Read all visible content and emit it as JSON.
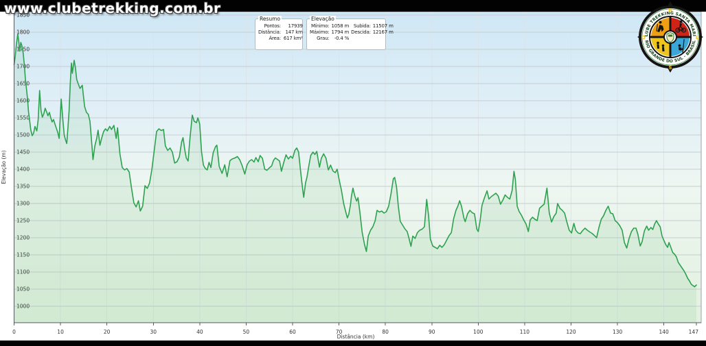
{
  "watermark": "www.clubetrekking.com.br",
  "boxes": {
    "resumo": {
      "title": "Resumo",
      "rows": [
        {
          "label": "Pontos:",
          "value": "17939"
        },
        {
          "label": "Distância:",
          "value": "147 km"
        },
        {
          "label": "Área:",
          "value": "617 km²"
        }
      ]
    },
    "elevacao": {
      "title": "Elevação",
      "rows": [
        {
          "label": "Mínimo:",
          "value": "1058 m",
          "label2": "Subida:",
          "value2": "11507 m"
        },
        {
          "label": "Máximo:",
          "value": "1794 m",
          "label2": "Descida:",
          "value2": "12167 m"
        },
        {
          "label": "Grau:",
          "value": "-0.4 %",
          "label2": "",
          "value2": ""
        }
      ]
    }
  },
  "logo": {
    "arc_text_top": "CLUBE TREKKING SANTA MARIA",
    "arc_text_bottom": "RIO GRANDE DO SUL - BRASIL",
    "compass": {
      "north": "N",
      "south": "S",
      "east": "L",
      "west": "O"
    },
    "colors": {
      "quad_tl": "#efa012",
      "quad_tr": "#cf2318",
      "quad_bl": "#edc51c",
      "quad_br": "#3ba7d9",
      "ring_text": "#16451a",
      "letters": "#f2c21d",
      "outline": "#141414"
    }
  },
  "chart_data": {
    "type": "line",
    "title": "",
    "xlabel": "Distância (km)",
    "ylabel": "Elevação (m)",
    "xlim": [
      0,
      147
    ],
    "ylim": [
      952,
      1860
    ],
    "grid": true,
    "legend": "none",
    "x_ticks": [
      0,
      10,
      20,
      30,
      40,
      50,
      60,
      70,
      80,
      90,
      100,
      110,
      120,
      130,
      140,
      147
    ],
    "y_ticks": [
      1000,
      1050,
      1100,
      1150,
      1200,
      1250,
      1300,
      1350,
      1400,
      1450,
      1500,
      1550,
      1600,
      1650,
      1700,
      1750,
      1800,
      1850
    ],
    "summary": {
      "points": 17939,
      "distance_km": 147,
      "area_km2": 617,
      "min_m": 1058,
      "max_m": 1794,
      "ascent_m": 11507,
      "descent_m": 12167,
      "grade_pct": -0.4
    },
    "colors": {
      "line": "#2da14f",
      "area_fill": "rgba(110,190,130,0.14)",
      "hgrid": "#c6cdd2",
      "vgrid": "#dde3e6",
      "border": "#9aa0a5",
      "axis": "#55595d",
      "tick_text": "#333333",
      "bg_gradient": [
        [
          "0%",
          "#cfe7f5"
        ],
        [
          "30%",
          "#e0eff7"
        ],
        [
          "55%",
          "#eef6f1"
        ],
        [
          "100%",
          "#e2f1df"
        ]
      ]
    },
    "points": [
      [
        0,
        1705
      ],
      [
        0.25,
        1730
      ],
      [
        0.5,
        1765
      ],
      [
        0.8,
        1794
      ],
      [
        1,
        1773
      ],
      [
        1.2,
        1745
      ],
      [
        1.45,
        1770
      ],
      [
        1.7,
        1760
      ],
      [
        1.95,
        1740
      ],
      [
        2.2,
        1705
      ],
      [
        2.45,
        1660
      ],
      [
        2.7,
        1632
      ],
      [
        2.9,
        1605
      ],
      [
        3.1,
        1568
      ],
      [
        3.3,
        1548
      ],
      [
        3.6,
        1515
      ],
      [
        3.9,
        1498
      ],
      [
        4.2,
        1505
      ],
      [
        4.5,
        1525
      ],
      [
        4.9,
        1512
      ],
      [
        5.2,
        1545
      ],
      [
        5.5,
        1630
      ],
      [
        5.8,
        1572
      ],
      [
        6.1,
        1552
      ],
      [
        6.4,
        1562
      ],
      [
        6.7,
        1578
      ],
      [
        7,
        1568
      ],
      [
        7.3,
        1556
      ],
      [
        7.6,
        1566
      ],
      [
        7.9,
        1550
      ],
      [
        8.2,
        1538
      ],
      [
        8.5,
        1545
      ],
      [
        8.8,
        1532
      ],
      [
        9.1,
        1520
      ],
      [
        9.4,
        1508
      ],
      [
        9.7,
        1490
      ],
      [
        10.15,
        1605
      ],
      [
        10.5,
        1545
      ],
      [
        10.8,
        1500
      ],
      [
        11.1,
        1485
      ],
      [
        11.35,
        1475
      ],
      [
        11.6,
        1520
      ],
      [
        11.85,
        1570
      ],
      [
        12.1,
        1650
      ],
      [
        12.35,
        1710
      ],
      [
        12.55,
        1680
      ],
      [
        12.75,
        1700
      ],
      [
        12.95,
        1718
      ],
      [
        13.2,
        1698
      ],
      [
        13.5,
        1662
      ],
      [
        13.8,
        1650
      ],
      [
        14.2,
        1636
      ],
      [
        14.7,
        1645
      ],
      [
        15.2,
        1583
      ],
      [
        15.6,
        1566
      ],
      [
        16,
        1560
      ],
      [
        16.35,
        1540
      ],
      [
        16.7,
        1480
      ],
      [
        17,
        1428
      ],
      [
        17.4,
        1468
      ],
      [
        17.8,
        1490
      ],
      [
        18.1,
        1514
      ],
      [
        18.5,
        1470
      ],
      [
        18.9,
        1492
      ],
      [
        19.3,
        1510
      ],
      [
        19.7,
        1518
      ],
      [
        20.1,
        1512
      ],
      [
        20.6,
        1525
      ],
      [
        21,
        1516
      ],
      [
        21.5,
        1528
      ],
      [
        22,
        1490
      ],
      [
        22.3,
        1521
      ],
      [
        22.8,
        1445
      ],
      [
        23.3,
        1405
      ],
      [
        23.8,
        1398
      ],
      [
        24.3,
        1402
      ],
      [
        24.8,
        1392
      ],
      [
        25.3,
        1345
      ],
      [
        25.8,
        1302
      ],
      [
        26.3,
        1290
      ],
      [
        26.8,
        1308
      ],
      [
        27.2,
        1278
      ],
      [
        27.7,
        1292
      ],
      [
        28.2,
        1352
      ],
      [
        28.7,
        1344
      ],
      [
        29.2,
        1360
      ],
      [
        29.7,
        1400
      ],
      [
        30.2,
        1455
      ],
      [
        30.7,
        1510
      ],
      [
        31.2,
        1518
      ],
      [
        31.7,
        1513
      ],
      [
        32.2,
        1516
      ],
      [
        32.6,
        1468
      ],
      [
        33.1,
        1455
      ],
      [
        33.6,
        1462
      ],
      [
        34.1,
        1450
      ],
      [
        34.6,
        1418
      ],
      [
        35.1,
        1422
      ],
      [
        35.6,
        1436
      ],
      [
        36.1,
        1480
      ],
      [
        36.4,
        1492
      ],
      [
        36.8,
        1455
      ],
      [
        37.1,
        1433
      ],
      [
        37.5,
        1424
      ],
      [
        37.9,
        1490
      ],
      [
        38.4,
        1558
      ],
      [
        38.8,
        1540
      ],
      [
        39.3,
        1536
      ],
      [
        39.6,
        1550
      ],
      [
        40,
        1532
      ],
      [
        40.4,
        1450
      ],
      [
        40.8,
        1412
      ],
      [
        41.2,
        1402
      ],
      [
        41.6,
        1398
      ],
      [
        42,
        1420
      ],
      [
        42.4,
        1405
      ],
      [
        42.9,
        1448
      ],
      [
        43.4,
        1466
      ],
      [
        43.7,
        1470
      ],
      [
        44.2,
        1408
      ],
      [
        44.8,
        1388
      ],
      [
        45.4,
        1413
      ],
      [
        45.9,
        1378
      ],
      [
        46.5,
        1425
      ],
      [
        47,
        1430
      ],
      [
        47.6,
        1433
      ],
      [
        48.1,
        1437
      ],
      [
        48.6,
        1428
      ],
      [
        49.1,
        1412
      ],
      [
        49.7,
        1386
      ],
      [
        50.2,
        1413
      ],
      [
        50.7,
        1424
      ],
      [
        51.2,
        1428
      ],
      [
        51.7,
        1421
      ],
      [
        52.1,
        1434
      ],
      [
        52.6,
        1422
      ],
      [
        53,
        1440
      ],
      [
        53.5,
        1432
      ],
      [
        54,
        1400
      ],
      [
        54.5,
        1397
      ],
      [
        55,
        1404
      ],
      [
        55.5,
        1410
      ],
      [
        55.9,
        1426
      ],
      [
        56.3,
        1433
      ],
      [
        56.8,
        1428
      ],
      [
        57.2,
        1424
      ],
      [
        57.6,
        1394
      ],
      [
        58.1,
        1420
      ],
      [
        58.6,
        1442
      ],
      [
        59.1,
        1430
      ],
      [
        59.6,
        1438
      ],
      [
        60,
        1432
      ],
      [
        60.5,
        1455
      ],
      [
        60.9,
        1462
      ],
      [
        61.3,
        1450
      ],
      [
        61.7,
        1398
      ],
      [
        62.1,
        1350
      ],
      [
        62.4,
        1318
      ],
      [
        62.8,
        1360
      ],
      [
        63.1,
        1377
      ],
      [
        63.5,
        1410
      ],
      [
        63.9,
        1440
      ],
      [
        64.4,
        1450
      ],
      [
        64.8,
        1443
      ],
      [
        65.2,
        1452
      ],
      [
        65.8,
        1406
      ],
      [
        66.2,
        1432
      ],
      [
        66.7,
        1445
      ],
      [
        67.2,
        1432
      ],
      [
        67.7,
        1398
      ],
      [
        68.2,
        1412
      ],
      [
        68.7,
        1395
      ],
      [
        69.2,
        1390
      ],
      [
        69.6,
        1400
      ],
      [
        70.1,
        1365
      ],
      [
        70.5,
        1340
      ],
      [
        71,
        1300
      ],
      [
        71.4,
        1278
      ],
      [
        71.8,
        1258
      ],
      [
        72.1,
        1268
      ],
      [
        72.45,
        1295
      ],
      [
        72.7,
        1322
      ],
      [
        73,
        1345
      ],
      [
        73.4,
        1322
      ],
      [
        73.8,
        1307
      ],
      [
        74.1,
        1317
      ],
      [
        74.5,
        1275
      ],
      [
        75,
        1215
      ],
      [
        75.5,
        1180
      ],
      [
        75.9,
        1160
      ],
      [
        76.3,
        1205
      ],
      [
        76.8,
        1222
      ],
      [
        77.3,
        1232
      ],
      [
        77.8,
        1250
      ],
      [
        78.2,
        1280
      ],
      [
        78.7,
        1275
      ],
      [
        79.2,
        1278
      ],
      [
        79.7,
        1272
      ],
      [
        80.2,
        1276
      ],
      [
        80.7,
        1292
      ],
      [
        81.2,
        1328
      ],
      [
        81.7,
        1372
      ],
      [
        82,
        1376
      ],
      [
        82.4,
        1348
      ],
      [
        82.8,
        1290
      ],
      [
        83.2,
        1248
      ],
      [
        83.7,
        1237
      ],
      [
        84.2,
        1226
      ],
      [
        84.7,
        1218
      ],
      [
        85.1,
        1198
      ],
      [
        85.5,
        1175
      ],
      [
        85.9,
        1205
      ],
      [
        86.4,
        1198
      ],
      [
        86.9,
        1215
      ],
      [
        87.4,
        1222
      ],
      [
        87.9,
        1225
      ],
      [
        88.4,
        1232
      ],
      [
        88.9,
        1312
      ],
      [
        89.3,
        1265
      ],
      [
        89.7,
        1196
      ],
      [
        90.2,
        1176
      ],
      [
        90.7,
        1172
      ],
      [
        91.2,
        1168
      ],
      [
        91.7,
        1178
      ],
      [
        92.2,
        1172
      ],
      [
        92.7,
        1180
      ],
      [
        93.2,
        1193
      ],
      [
        93.7,
        1206
      ],
      [
        94.2,
        1215
      ],
      [
        94.7,
        1255
      ],
      [
        95.2,
        1280
      ],
      [
        95.6,
        1292
      ],
      [
        96,
        1308
      ],
      [
        96.4,
        1292
      ],
      [
        96.9,
        1258
      ],
      [
        97.2,
        1247
      ],
      [
        97.7,
        1270
      ],
      [
        98.2,
        1280
      ],
      [
        98.7,
        1273
      ],
      [
        99.2,
        1270
      ],
      [
        99.7,
        1225
      ],
      [
        100,
        1218
      ],
      [
        100.4,
        1250
      ],
      [
        100.8,
        1294
      ],
      [
        101.3,
        1315
      ],
      [
        101.9,
        1337
      ],
      [
        102.3,
        1313
      ],
      [
        102.8,
        1320
      ],
      [
        103.3,
        1325
      ],
      [
        103.8,
        1330
      ],
      [
        104.3,
        1322
      ],
      [
        104.8,
        1298
      ],
      [
        105.3,
        1310
      ],
      [
        105.8,
        1325
      ],
      [
        106.3,
        1318
      ],
      [
        106.8,
        1313
      ],
      [
        107.3,
        1338
      ],
      [
        107.7,
        1394
      ],
      [
        108,
        1370
      ],
      [
        108.4,
        1292
      ],
      [
        108.8,
        1277
      ],
      [
        109.3,
        1266
      ],
      [
        109.8,
        1252
      ],
      [
        110.3,
        1240
      ],
      [
        110.8,
        1218
      ],
      [
        111.2,
        1252
      ],
      [
        111.7,
        1260
      ],
      [
        112.2,
        1254
      ],
      [
        112.7,
        1250
      ],
      [
        113.2,
        1286
      ],
      [
        113.7,
        1292
      ],
      [
        114.2,
        1298
      ],
      [
        114.8,
        1345
      ],
      [
        115.3,
        1272
      ],
      [
        115.8,
        1246
      ],
      [
        116.3,
        1262
      ],
      [
        116.8,
        1272
      ],
      [
        117.1,
        1300
      ],
      [
        117.6,
        1286
      ],
      [
        118.1,
        1280
      ],
      [
        118.6,
        1272
      ],
      [
        119.1,
        1246
      ],
      [
        119.6,
        1222
      ],
      [
        120.1,
        1214
      ],
      [
        120.6,
        1242
      ],
      [
        121,
        1222
      ],
      [
        121.5,
        1214
      ],
      [
        122,
        1212
      ],
      [
        122.5,
        1221
      ],
      [
        123,
        1228
      ],
      [
        123.5,
        1222
      ],
      [
        124,
        1217
      ],
      [
        124.5,
        1213
      ],
      [
        125,
        1207
      ],
      [
        125.5,
        1200
      ],
      [
        126,
        1230
      ],
      [
        126.5,
        1254
      ],
      [
        127,
        1264
      ],
      [
        127.5,
        1280
      ],
      [
        128,
        1292
      ],
      [
        128.5,
        1272
      ],
      [
        129,
        1270
      ],
      [
        129.5,
        1250
      ],
      [
        130,
        1244
      ],
      [
        130.5,
        1235
      ],
      [
        131,
        1222
      ],
      [
        131.5,
        1186
      ],
      [
        132,
        1170
      ],
      [
        132.5,
        1198
      ],
      [
        133,
        1218
      ],
      [
        133.5,
        1228
      ],
      [
        134,
        1228
      ],
      [
        134.4,
        1210
      ],
      [
        134.9,
        1176
      ],
      [
        135.3,
        1188
      ],
      [
        135.8,
        1220
      ],
      [
        136.3,
        1234
      ],
      [
        136.7,
        1222
      ],
      [
        137.2,
        1230
      ],
      [
        137.6,
        1224
      ],
      [
        138,
        1240
      ],
      [
        138.4,
        1250
      ],
      [
        138.8,
        1240
      ],
      [
        139.2,
        1232
      ],
      [
        139.6,
        1205
      ],
      [
        140,
        1192
      ],
      [
        140.4,
        1180
      ],
      [
        140.8,
        1172
      ],
      [
        141.1,
        1186
      ],
      [
        141.5,
        1172
      ],
      [
        141.9,
        1157
      ],
      [
        142.3,
        1152
      ],
      [
        142.7,
        1144
      ],
      [
        143.1,
        1128
      ],
      [
        143.5,
        1120
      ],
      [
        143.9,
        1112
      ],
      [
        144.3,
        1104
      ],
      [
        144.7,
        1094
      ],
      [
        145.1,
        1082
      ],
      [
        145.5,
        1074
      ],
      [
        145.9,
        1064
      ],
      [
        146.3,
        1060
      ],
      [
        146.6,
        1057
      ],
      [
        147,
        1062
      ]
    ]
  }
}
